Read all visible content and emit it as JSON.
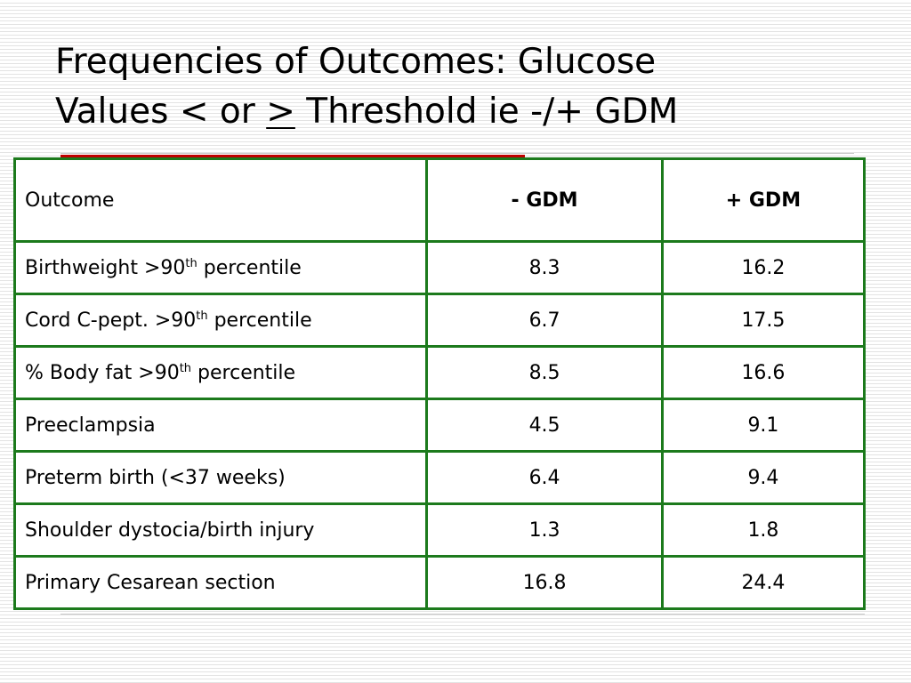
{
  "title": {
    "line1": "Frequencies of Outcomes: Glucose",
    "line2_before": "Values < or ",
    "line2_symbol": ">",
    "line2_after": " Threshold ie -/+ GDM"
  },
  "table": {
    "headers": [
      "Outcome",
      "- GDM",
      "+ GDM"
    ],
    "rows": [
      {
        "outcome": "Birthweight >90",
        "sup": "th",
        "outcome_suffix": " percentile",
        "neg": "8.3",
        "pos": "16.2"
      },
      {
        "outcome": "Cord C-pept. >90",
        "sup": "th",
        "outcome_suffix": " percentile",
        "neg": "6.7",
        "pos": "17.5"
      },
      {
        "outcome": "% Body fat >90",
        "sup": "th",
        "outcome_suffix": " percentile",
        "neg": "8.5",
        "pos": "16.6"
      },
      {
        "outcome": "Preeclampsia",
        "neg": "4.5",
        "pos": "9.1"
      },
      {
        "outcome": "Preterm birth (<37 weeks)",
        "neg": "6.4",
        "pos": "9.4"
      },
      {
        "outcome": "Shoulder dystocia/birth injury",
        "neg": "1.3",
        "pos": "1.8"
      },
      {
        "outcome": "Primary Cesarean section",
        "neg": "16.8",
        "pos": "24.4"
      }
    ]
  },
  "colors": {
    "table_border": "#1c7a1c",
    "accent_bar": "#c00000"
  }
}
